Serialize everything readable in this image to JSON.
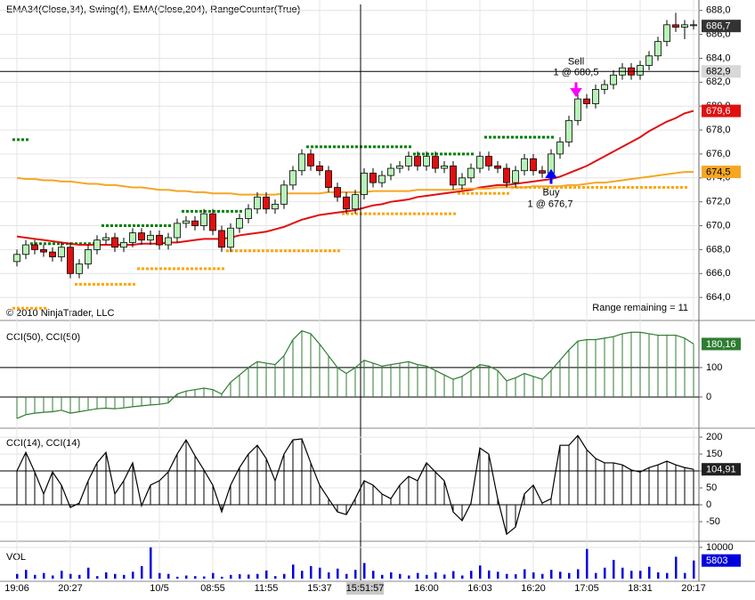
{
  "chart_data": [
    {
      "type": "candlestick",
      "title": "EMA34(Close,34), Swing(4), EMA(Close,204), RangeCounter(True)",
      "copyright": "© 2010 NinjaTrader, LLC",
      "range_text": "Range remaining = 11",
      "categories": [
        "19:06",
        null,
        null,
        null,
        null,
        null,
        "20:27",
        null,
        null,
        null,
        null,
        null,
        null,
        null,
        null,
        null,
        "10/5",
        null,
        null,
        null,
        null,
        null,
        "08:55",
        null,
        null,
        null,
        null,
        null,
        "11:55",
        null,
        null,
        null,
        null,
        null,
        "15:37",
        null,
        null,
        null,
        null,
        null,
        null,
        null,
        null,
        null,
        null,
        null,
        "16:00",
        null,
        null,
        null,
        null,
        null,
        "16:03",
        null,
        null,
        null,
        null,
        null,
        "16:20",
        null,
        null,
        null,
        null,
        null,
        "17:05",
        null,
        null,
        null,
        null,
        null,
        "18:31",
        null,
        null,
        null,
        null,
        null,
        "20:17"
      ],
      "open": [
        667.0,
        667.6,
        668.4,
        668.0,
        667.8,
        667.4,
        668.2,
        666.0,
        666.8,
        668.0,
        668.8,
        669.0,
        668.2,
        668.6,
        669.4,
        668.8,
        669.2,
        668.4,
        669.0,
        670.2,
        670.4,
        670.0,
        671.0,
        669.6,
        668.2,
        669.8,
        670.6,
        671.4,
        672.4,
        671.4,
        671.8,
        673.4,
        674.6,
        676.0,
        675.0,
        674.6,
        673.2,
        672.4,
        671.4,
        672.6,
        674.4,
        673.6,
        674.2,
        674.8,
        675.0,
        675.8,
        675.0,
        675.8,
        674.8,
        675.0,
        673.4,
        674.0,
        674.8,
        675.8,
        675.0,
        674.8,
        673.6,
        674.6,
        675.6,
        674.6,
        674.4,
        676.0,
        677.0,
        678.8,
        680.6,
        680.2,
        681.4,
        681.8,
        682.6,
        683.2,
        682.6,
        683.4,
        684.2,
        685.4,
        686.8,
        686.6,
        686.8
      ],
      "high": [
        668.0,
        668.8,
        668.8,
        668.4,
        668.2,
        668.6,
        668.6,
        667.2,
        668.4,
        669.2,
        669.4,
        669.4,
        669.0,
        669.8,
        669.8,
        669.6,
        669.6,
        669.4,
        670.6,
        670.8,
        670.8,
        671.4,
        671.4,
        670.0,
        670.2,
        671.0,
        671.8,
        672.8,
        672.8,
        672.2,
        673.8,
        675.0,
        676.4,
        676.4,
        675.4,
        675.0,
        673.6,
        672.8,
        673.0,
        674.8,
        674.8,
        674.6,
        675.2,
        675.4,
        676.2,
        676.2,
        676.2,
        676.2,
        675.4,
        675.4,
        674.4,
        675.2,
        676.2,
        676.2,
        675.4,
        675.2,
        675.0,
        676.0,
        676.0,
        675.0,
        676.4,
        677.4,
        679.2,
        681.0,
        681.0,
        681.8,
        682.2,
        683.0,
        683.6,
        683.6,
        683.8,
        684.6,
        685.8,
        687.2,
        687.8,
        687.2,
        687.2
      ],
      "low": [
        666.6,
        667.2,
        667.6,
        667.4,
        667.0,
        667.0,
        665.6,
        665.6,
        666.4,
        667.6,
        668.4,
        667.8,
        667.8,
        668.2,
        668.4,
        668.4,
        668.0,
        668.0,
        668.6,
        669.8,
        669.6,
        669.6,
        669.2,
        667.8,
        667.8,
        669.4,
        670.2,
        671.0,
        671.0,
        671.0,
        671.4,
        673.0,
        674.2,
        674.6,
        674.2,
        672.8,
        672.0,
        671.0,
        671.0,
        672.2,
        673.2,
        673.2,
        673.8,
        674.4,
        674.6,
        674.6,
        674.6,
        674.4,
        674.4,
        673.0,
        673.0,
        673.6,
        674.4,
        674.6,
        674.4,
        673.2,
        673.2,
        674.2,
        674.2,
        674.0,
        674.0,
        675.6,
        676.6,
        678.4,
        679.8,
        679.8,
        681.0,
        681.4,
        682.2,
        682.2,
        682.2,
        683.0,
        683.8,
        685.0,
        686.2,
        685.6,
        686.4
      ],
      "close": [
        667.6,
        668.4,
        668.0,
        667.8,
        667.4,
        668.2,
        666.0,
        666.8,
        668.0,
        668.8,
        669.0,
        668.2,
        668.6,
        669.4,
        668.8,
        669.2,
        668.4,
        669.0,
        670.2,
        670.4,
        670.0,
        671.0,
        669.6,
        668.2,
        669.8,
        670.6,
        671.4,
        672.4,
        671.4,
        671.8,
        673.4,
        674.6,
        676.0,
        675.0,
        674.6,
        673.2,
        672.4,
        671.4,
        672.6,
        674.4,
        673.6,
        674.2,
        674.8,
        675.0,
        675.8,
        675.0,
        675.8,
        674.8,
        675.0,
        673.4,
        674.0,
        674.8,
        675.8,
        675.0,
        674.8,
        673.6,
        674.6,
        675.6,
        674.6,
        674.4,
        676.0,
        677.0,
        678.8,
        680.6,
        680.2,
        681.4,
        681.8,
        682.6,
        683.2,
        682.6,
        683.4,
        684.2,
        685.4,
        686.8,
        686.6,
        686.8,
        686.8
      ],
      "up_color": "#b9f2b9",
      "down_color": "#e01010",
      "series": [
        {
          "color": "#e01010",
          "values": [
            669.1,
            669.0,
            668.9,
            668.8,
            668.7,
            668.6,
            668.5,
            668.4,
            668.4,
            668.4,
            668.4,
            668.4,
            668.4,
            668.4,
            668.5,
            668.5,
            668.5,
            668.6,
            668.6,
            668.7,
            668.8,
            668.9,
            668.9,
            668.9,
            669.0,
            669.2,
            669.3,
            669.4,
            669.5,
            669.7,
            669.9,
            670.2,
            670.5,
            670.7,
            670.9,
            671.0,
            671.1,
            671.2,
            671.3,
            671.5,
            671.7,
            671.8,
            672.0,
            672.1,
            672.2,
            672.4,
            672.5,
            672.6,
            672.7,
            672.8,
            672.9,
            673.0,
            673.2,
            673.3,
            673.4,
            673.4,
            673.5,
            673.6,
            673.7,
            673.8,
            673.9,
            674.1,
            674.4,
            674.7,
            675.0,
            675.4,
            675.8,
            676.2,
            676.6,
            677.0,
            677.4,
            677.9,
            678.3,
            678.7,
            679.0,
            679.4,
            679.6
          ]
        },
        {
          "color": "#f5a623",
          "values": [
            674.0,
            673.9,
            673.9,
            673.8,
            673.8,
            673.7,
            673.7,
            673.6,
            673.5,
            673.5,
            673.4,
            673.4,
            673.3,
            673.2,
            673.2,
            673.1,
            673.0,
            673.0,
            672.9,
            672.9,
            672.8,
            672.8,
            672.7,
            672.7,
            672.7,
            672.6,
            672.6,
            672.6,
            672.6,
            672.6,
            672.7,
            672.7,
            672.7,
            672.7,
            672.7,
            672.8,
            672.8,
            672.8,
            672.8,
            672.8,
            672.9,
            672.9,
            672.9,
            672.9,
            672.9,
            673.0,
            673.0,
            673.0,
            673.0,
            673.0,
            673.1,
            673.1,
            673.1,
            673.1,
            673.2,
            673.2,
            673.2,
            673.2,
            673.3,
            673.3,
            673.3,
            673.3,
            673.4,
            673.4,
            673.5,
            673.6,
            673.6,
            673.7,
            673.8,
            673.9,
            674.0,
            674.1,
            674.2,
            674.3,
            674.4,
            674.5,
            674.5
          ]
        }
      ],
      "swing_high": {
        "color": "#008000",
        "values": [
          677.2,
          677.2,
          668.5,
          668.5,
          668.5,
          668.5,
          668.5,
          668.5,
          668.5,
          668.5,
          670.0,
          670.0,
          670.0,
          670.0,
          670.0,
          670.0,
          670.0,
          670.0,
          null,
          671.2,
          671.2,
          671.2,
          671.2,
          671.2,
          671.2,
          671.2,
          null,
          null,
          null,
          null,
          null,
          null,
          null,
          676.6,
          676.6,
          676.6,
          676.6,
          676.6,
          676.6,
          676.6,
          676.6,
          676.6,
          676.6,
          676.6,
          676.6,
          676.0,
          676.0,
          676.0,
          676.0,
          676.0,
          676.0,
          676.0,
          null,
          677.4,
          677.4,
          677.4,
          677.4,
          677.4,
          677.4,
          677.4,
          677.4,
          null,
          null,
          null,
          null,
          null,
          null,
          null,
          null,
          null,
          null,
          null,
          null,
          null,
          null,
          null,
          null
        ]
      },
      "swing_low": {
        "color": "#ffa500",
        "values": [
          663.1,
          663.1,
          663.1,
          663.1,
          null,
          null,
          null,
          665.1,
          665.1,
          665.1,
          665.1,
          665.1,
          665.1,
          665.1,
          666.4,
          666.4,
          666.4,
          666.4,
          666.4,
          666.4,
          666.4,
          666.4,
          666.4,
          666.4,
          667.9,
          667.9,
          667.9,
          667.9,
          667.9,
          667.9,
          667.9,
          667.9,
          667.9,
          667.9,
          667.9,
          667.9,
          667.9,
          671.0,
          671.0,
          671.0,
          671.0,
          671.0,
          671.0,
          671.0,
          671.0,
          671.0,
          671.0,
          671.0,
          671.0,
          671.0,
          672.7,
          672.7,
          672.7,
          672.7,
          672.7,
          672.7,
          673.2,
          673.2,
          673.2,
          673.2,
          673.2,
          673.2,
          673.2,
          673.2,
          673.2,
          673.2,
          673.2,
          673.2,
          673.2,
          673.2,
          673.2,
          673.2,
          673.2,
          673.2,
          673.2,
          673.2,
          null
        ]
      },
      "ylim": [
        662.3,
        688.5
      ],
      "yticks": [
        {
          "value": 664,
          "label": "664,0"
        },
        {
          "value": 666,
          "label": "666,0"
        },
        {
          "value": 668,
          "label": "668,0"
        },
        {
          "value": 670,
          "label": "670,0"
        },
        {
          "value": 672,
          "label": "672,0"
        },
        {
          "value": 674,
          "label": "674,0"
        },
        {
          "value": 676,
          "label": "676,0"
        },
        {
          "value": 678,
          "label": "678,0"
        },
        {
          "value": 680,
          "label": "680,0"
        },
        {
          "value": 682,
          "label": "682,0"
        },
        {
          "value": 684,
          "label": "684,0"
        },
        {
          "value": 686,
          "label": "686,0"
        },
        {
          "value": 688,
          "label": "688,0"
        }
      ],
      "grid": true,
      "badges": [
        {
          "value": 686.7,
          "label": "686,7",
          "color": "#333333",
          "text_color": "#ffffff"
        },
        {
          "value": 682.9,
          "label": "682,9",
          "color": "#d8d8d8",
          "text_color": "#000000"
        },
        {
          "value": 679.6,
          "label": "679,6",
          "color": "#e01010",
          "text_color": "#ffffff"
        },
        {
          "value": 674.5,
          "label": "674,5",
          "color": "#f5a623",
          "text_color": "#000000"
        }
      ],
      "crosshair": {
        "time": "15:51:57",
        "price": 682.9
      },
      "trades": [
        {
          "side": "Sell",
          "text": "1 @ 680,5",
          "price": 680.5,
          "bar": 63,
          "color": "#ff00ff"
        },
        {
          "side": "Buy",
          "text": "1 @ 676,7",
          "price": 676.7,
          "bar": 60,
          "color": "#0000ff"
        }
      ]
    },
    {
      "type": "cci",
      "title": "CCI(50), CCI(50)",
      "color": "#2e7d32",
      "values": [
        -73,
        -60,
        -55,
        -52,
        -50,
        -45,
        -55,
        -50,
        -45,
        -40,
        -38,
        -40,
        -37,
        -33,
        -30,
        -27,
        -25,
        -20,
        10,
        20,
        25,
        30,
        25,
        10,
        50,
        75,
        100,
        120,
        115,
        110,
        140,
        195,
        225,
        215,
        180,
        140,
        100,
        80,
        100,
        125,
        115,
        105,
        110,
        115,
        120,
        110,
        105,
        90,
        75,
        60,
        70,
        90,
        110,
        105,
        90,
        55,
        65,
        80,
        70,
        60,
        90,
        125,
        160,
        190,
        195,
        195,
        200,
        205,
        215,
        220,
        220,
        215,
        210,
        210,
        210,
        200,
        180.16
      ],
      "ylim": [
        -97,
        245
      ],
      "yticks": [
        0,
        100
      ],
      "levels": [
        100,
        0
      ],
      "badge": {
        "value": 180.16,
        "label": "180,16",
        "color": "#2e7d32",
        "text_color": "#ffffff"
      }
    },
    {
      "type": "cci",
      "title": "CCI(14), CCI(14)",
      "color": "#000000",
      "values": [
        100,
        155,
        97,
        32,
        97,
        58,
        -8,
        5,
        71,
        124,
        155,
        32,
        71,
        124,
        -3,
        58,
        71,
        97,
        150,
        192,
        145,
        103,
        58,
        -21,
        58,
        110,
        150,
        176,
        137,
        71,
        150,
        192,
        195,
        124,
        58,
        18,
        -21,
        -29,
        18,
        71,
        58,
        32,
        18,
        58,
        84,
        71,
        124,
        97,
        71,
        -21,
        -47,
        5,
        168,
        150,
        18,
        -87,
        -66,
        32,
        58,
        5,
        18,
        176,
        176,
        205,
        163,
        137,
        124,
        124,
        118,
        103,
        97,
        110,
        118,
        129,
        118,
        110,
        104.91
      ],
      "ylim": [
        -100,
        216
      ],
      "yticks": [
        200,
        150,
        100,
        50,
        0,
        -50
      ],
      "levels": [
        100,
        0
      ],
      "badge": {
        "value": 104.91,
        "label": "104,91",
        "color": "#222222",
        "text_color": "#ffffff"
      }
    },
    {
      "type": "bar",
      "title": "VOL",
      "color": "#0000dd",
      "values": [
        1500,
        2800,
        1200,
        1800,
        1000,
        2500,
        1500,
        1200,
        3500,
        800,
        2000,
        1500,
        1200,
        2200,
        4000,
        10000,
        1800,
        1500,
        600,
        1000,
        800,
        700,
        1800,
        600,
        1200,
        1400,
        1300,
        1500,
        2600,
        800,
        1500,
        4500,
        2500,
        4000,
        3500,
        2000,
        3200,
        1500,
        2800,
        5000,
        2500,
        1200,
        2000,
        1500,
        1000,
        1800,
        1200,
        2000,
        1300,
        2400,
        1000,
        2500,
        4200,
        2600,
        2200,
        1500,
        1400,
        3000,
        2000,
        1500,
        2800,
        2200,
        1800,
        3000,
        9500,
        1800,
        3500,
        6000,
        3500,
        2500,
        2500,
        3800,
        2000,
        1800,
        7000,
        1800,
        5803
      ],
      "ylim": [
        0,
        11400
      ],
      "yticks": [
        10000
      ],
      "badge": {
        "value": 5803,
        "label": "5803",
        "color": "#0000dd",
        "text_color": "#ffffff"
      }
    }
  ]
}
